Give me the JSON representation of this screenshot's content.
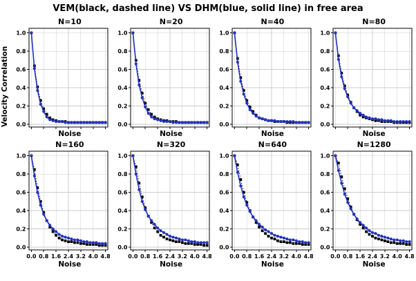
{
  "figure": {
    "title": "VEM(black, dashed line) VS DHM(blue, solid line) in free area",
    "ylabel": "Velocity Correlation",
    "xlabel": "Noise"
  },
  "colors": {
    "vem": "#000000",
    "dhm": "#2233bb",
    "grid": "#cccccc",
    "frame": "#000000"
  },
  "chart_data": {
    "type": "line",
    "title": "VEM(black, dashed line) VS DHM(blue, solid line) in free area",
    "xlabel": "Noise",
    "ylabel": "Velocity Correlation",
    "xlim": [
      0,
      4.8
    ],
    "ylim": [
      0,
      1.0
    ],
    "xticks": [
      0.0,
      0.8,
      1.6,
      2.4,
      3.2,
      4.0,
      4.8
    ],
    "yticks": [
      0.0,
      0.2,
      0.4,
      0.6,
      0.8,
      1.0
    ],
    "grid": true,
    "legend_position": "none",
    "x": [
      0,
      0.2,
      0.4,
      0.6,
      0.8,
      1,
      1.2,
      1.4,
      1.6,
      1.8,
      2,
      2.2,
      2.4,
      2.6,
      2.8,
      3,
      3.2,
      3.4,
      3.6,
      3.8,
      4,
      4.2,
      4.4,
      4.6,
      4.8
    ],
    "panels": [
      {
        "title": "N=10",
        "series": [
          {
            "name": "VEM",
            "style": "dashed",
            "marker": "square",
            "values": [
              1.0,
              0.64,
              0.41,
              0.26,
              0.17,
              0.11,
              0.07,
              0.05,
              0.04,
              0.03,
              0.03,
              0.03,
              0.02,
              0.02,
              0.02,
              0.02,
              0.02,
              0.02,
              0.02,
              0.02,
              0.02,
              0.02,
              0.02,
              0.02,
              0.02
            ]
          },
          {
            "name": "DHM",
            "style": "solid",
            "marker": "circle",
            "values": [
              1.0,
              0.61,
              0.37,
              0.22,
              0.14,
              0.08,
              0.05,
              0.04,
              0.03,
              0.03,
              0.03,
              0.02,
              0.02,
              0.02,
              0.02,
              0.02,
              0.02,
              0.02,
              0.02,
              0.02,
              0.02,
              0.02,
              0.02,
              0.02,
              0.02
            ]
          }
        ]
      },
      {
        "title": "N=20",
        "series": [
          {
            "name": "VEM",
            "style": "dashed",
            "marker": "square",
            "values": [
              1.0,
              0.7,
              0.48,
              0.34,
              0.23,
              0.16,
              0.11,
              0.08,
              0.06,
              0.05,
              0.04,
              0.04,
              0.03,
              0.03,
              0.03,
              0.02,
              0.02,
              0.02,
              0.02,
              0.02,
              0.02,
              0.02,
              0.02,
              0.02,
              0.02
            ]
          },
          {
            "name": "DHM",
            "style": "solid",
            "marker": "circle",
            "values": [
              1.0,
              0.66,
              0.43,
              0.29,
              0.19,
              0.12,
              0.08,
              0.06,
              0.05,
              0.04,
              0.03,
              0.03,
              0.03,
              0.02,
              0.02,
              0.02,
              0.02,
              0.02,
              0.02,
              0.02,
              0.02,
              0.02,
              0.02,
              0.02,
              0.02
            ]
          }
        ]
      },
      {
        "title": "N=40",
        "series": [
          {
            "name": "VEM",
            "style": "dashed",
            "marker": "square",
            "values": [
              1.0,
              0.72,
              0.51,
              0.37,
              0.26,
              0.19,
              0.14,
              0.1,
              0.07,
              0.06,
              0.05,
              0.04,
              0.04,
              0.03,
              0.03,
              0.03,
              0.03,
              0.02,
              0.02,
              0.02,
              0.02,
              0.02,
              0.02,
              0.02,
              0.02
            ]
          },
          {
            "name": "DHM",
            "style": "solid",
            "marker": "circle",
            "values": [
              1.0,
              0.68,
              0.47,
              0.33,
              0.23,
              0.16,
              0.12,
              0.09,
              0.07,
              0.06,
              0.05,
              0.04,
              0.04,
              0.04,
              0.03,
              0.03,
              0.03,
              0.03,
              0.03,
              0.03,
              0.02,
              0.02,
              0.02,
              0.02,
              0.02
            ]
          }
        ]
      },
      {
        "title": "N=80",
        "series": [
          {
            "name": "VEM",
            "style": "dashed",
            "marker": "square",
            "values": [
              1.0,
              0.75,
              0.56,
              0.42,
              0.32,
              0.24,
              0.18,
              0.14,
              0.1,
              0.08,
              0.07,
              0.06,
              0.05,
              0.04,
              0.04,
              0.03,
              0.03,
              0.03,
              0.03,
              0.02,
              0.02,
              0.02,
              0.02,
              0.02,
              0.02
            ]
          },
          {
            "name": "DHM",
            "style": "solid",
            "marker": "circle",
            "values": [
              1.0,
              0.71,
              0.52,
              0.39,
              0.3,
              0.23,
              0.18,
              0.15,
              0.12,
              0.1,
              0.08,
              0.07,
              0.06,
              0.06,
              0.05,
              0.05,
              0.04,
              0.04,
              0.04,
              0.03,
              0.03,
              0.03,
              0.03,
              0.03,
              0.03
            ]
          }
        ]
      },
      {
        "title": "N=160",
        "series": [
          {
            "name": "VEM",
            "style": "dashed",
            "marker": "square",
            "values": [
              1.0,
              0.85,
              0.65,
              0.5,
              0.38,
              0.29,
              0.22,
              0.17,
              0.13,
              0.1,
              0.08,
              0.07,
              0.06,
              0.06,
              0.05,
              0.05,
              0.04,
              0.04,
              0.03,
              0.03,
              0.03,
              0.03,
              0.02,
              0.02,
              0.02
            ]
          },
          {
            "name": "DHM",
            "style": "solid",
            "marker": "circle",
            "values": [
              1.0,
              0.78,
              0.6,
              0.46,
              0.36,
              0.29,
              0.24,
              0.2,
              0.17,
              0.14,
              0.12,
              0.11,
              0.1,
              0.09,
              0.08,
              0.08,
              0.07,
              0.06,
              0.06,
              0.05,
              0.05,
              0.05,
              0.04,
              0.04,
              0.04
            ]
          }
        ]
      },
      {
        "title": "N=320",
        "series": [
          {
            "name": "VEM",
            "style": "dashed",
            "marker": "square",
            "values": [
              1.0,
              0.88,
              0.7,
              0.55,
              0.43,
              0.34,
              0.27,
              0.21,
              0.17,
              0.13,
              0.11,
              0.09,
              0.08,
              0.07,
              0.06,
              0.06,
              0.05,
              0.04,
              0.04,
              0.04,
              0.03,
              0.03,
              0.03,
              0.02,
              0.02
            ]
          },
          {
            "name": "DHM",
            "style": "solid",
            "marker": "circle",
            "values": [
              1.0,
              0.8,
              0.63,
              0.5,
              0.41,
              0.34,
              0.29,
              0.25,
              0.21,
              0.18,
              0.16,
              0.14,
              0.12,
              0.11,
              0.1,
              0.09,
              0.08,
              0.08,
              0.07,
              0.06,
              0.06,
              0.05,
              0.05,
              0.05,
              0.05
            ]
          }
        ]
      },
      {
        "title": "N=640",
        "series": [
          {
            "name": "VEM",
            "style": "dashed",
            "marker": "square",
            "values": [
              1.0,
              0.9,
              0.74,
              0.6,
              0.49,
              0.4,
              0.33,
              0.27,
              0.22,
              0.18,
              0.15,
              0.12,
              0.1,
              0.09,
              0.07,
              0.06,
              0.06,
              0.05,
              0.05,
              0.04,
              0.04,
              0.04,
              0.03,
              0.03,
              0.03
            ]
          },
          {
            "name": "DHM",
            "style": "solid",
            "marker": "circle",
            "values": [
              1.0,
              0.82,
              0.67,
              0.55,
              0.46,
              0.39,
              0.33,
              0.29,
              0.25,
              0.22,
              0.19,
              0.17,
              0.15,
              0.13,
              0.12,
              0.11,
              0.1,
              0.09,
              0.08,
              0.08,
              0.07,
              0.06,
              0.06,
              0.05,
              0.05
            ]
          }
        ]
      },
      {
        "title": "N=1280",
        "series": [
          {
            "name": "VEM",
            "style": "dashed",
            "marker": "square",
            "values": [
              1.0,
              0.92,
              0.77,
              0.64,
              0.53,
              0.44,
              0.36,
              0.3,
              0.25,
              0.21,
              0.17,
              0.14,
              0.12,
              0.1,
              0.09,
              0.08,
              0.07,
              0.06,
              0.05,
              0.05,
              0.04,
              0.04,
              0.04,
              0.03,
              0.03
            ]
          },
          {
            "name": "DHM",
            "style": "solid",
            "marker": "circle",
            "values": [
              1.0,
              0.84,
              0.7,
              0.58,
              0.49,
              0.42,
              0.36,
              0.31,
              0.27,
              0.24,
              0.21,
              0.18,
              0.16,
              0.15,
              0.13,
              0.12,
              0.11,
              0.1,
              0.09,
              0.08,
              0.08,
              0.07,
              0.07,
              0.06,
              0.06
            ]
          }
        ]
      }
    ]
  }
}
